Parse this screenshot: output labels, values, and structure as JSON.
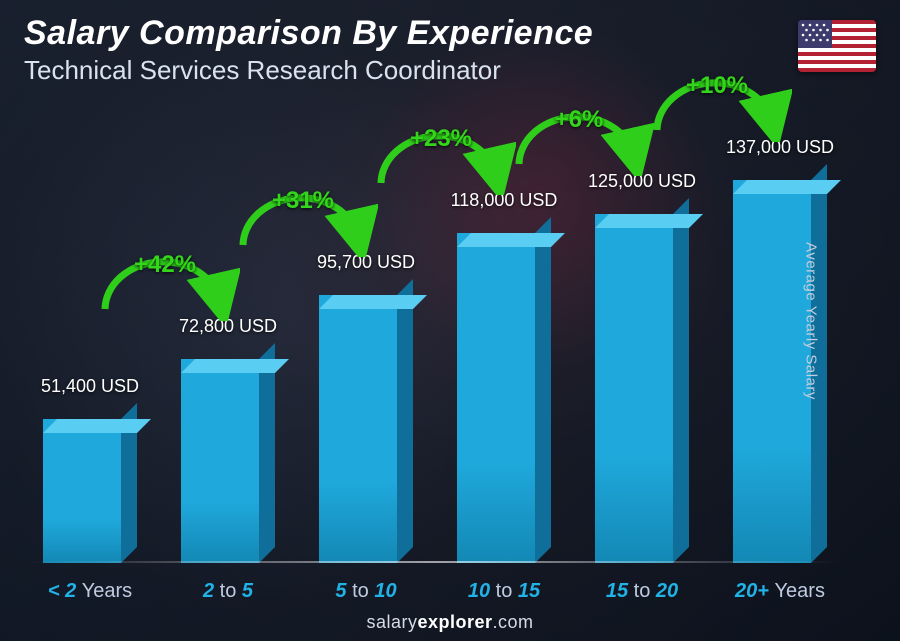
{
  "header": {
    "title": "Salary Comparison By Experience",
    "subtitle": "Technical Services Research Coordinator",
    "flag_country": "United States"
  },
  "y_axis_label": "Average Yearly Salary",
  "watermark": {
    "prefix": "salary",
    "bold": "explorer",
    "suffix": ".com"
  },
  "chart": {
    "type": "bar",
    "max_value": 137000,
    "bar_color_front": "#1fa8db",
    "bar_color_side": "#0f6f9a",
    "bar_color_top": "#59cdf2",
    "arc_color": "#2fce1a",
    "arc_stroke_width": 7,
    "value_label_color": "#ffffff",
    "value_label_fontsize": 18,
    "x_accent_color": "#21b2e6",
    "x_dim_color": "#bfcbe0",
    "x_fontsize": 20,
    "bars": [
      {
        "value": 51400,
        "value_label": "51,400 USD",
        "x_accent": "< 2",
        "x_dim": "Years",
        "pct": null
      },
      {
        "value": 72800,
        "value_label": "72,800 USD",
        "x_accent": "2",
        "x_mid": "to",
        "x_accent2": "5",
        "pct": "+42%"
      },
      {
        "value": 95700,
        "value_label": "95,700 USD",
        "x_accent": "5",
        "x_mid": "to",
        "x_accent2": "10",
        "pct": "+31%"
      },
      {
        "value": 118000,
        "value_label": "118,000 USD",
        "x_accent": "10",
        "x_mid": "to",
        "x_accent2": "15",
        "pct": "+23%"
      },
      {
        "value": 125000,
        "value_label": "125,000 USD",
        "x_accent": "15",
        "x_mid": "to",
        "x_accent2": "20",
        "pct": "+6%"
      },
      {
        "value": 137000,
        "value_label": "137,000 USD",
        "x_accent": "20+",
        "x_dim": "Years",
        "pct": "+10%"
      }
    ]
  }
}
